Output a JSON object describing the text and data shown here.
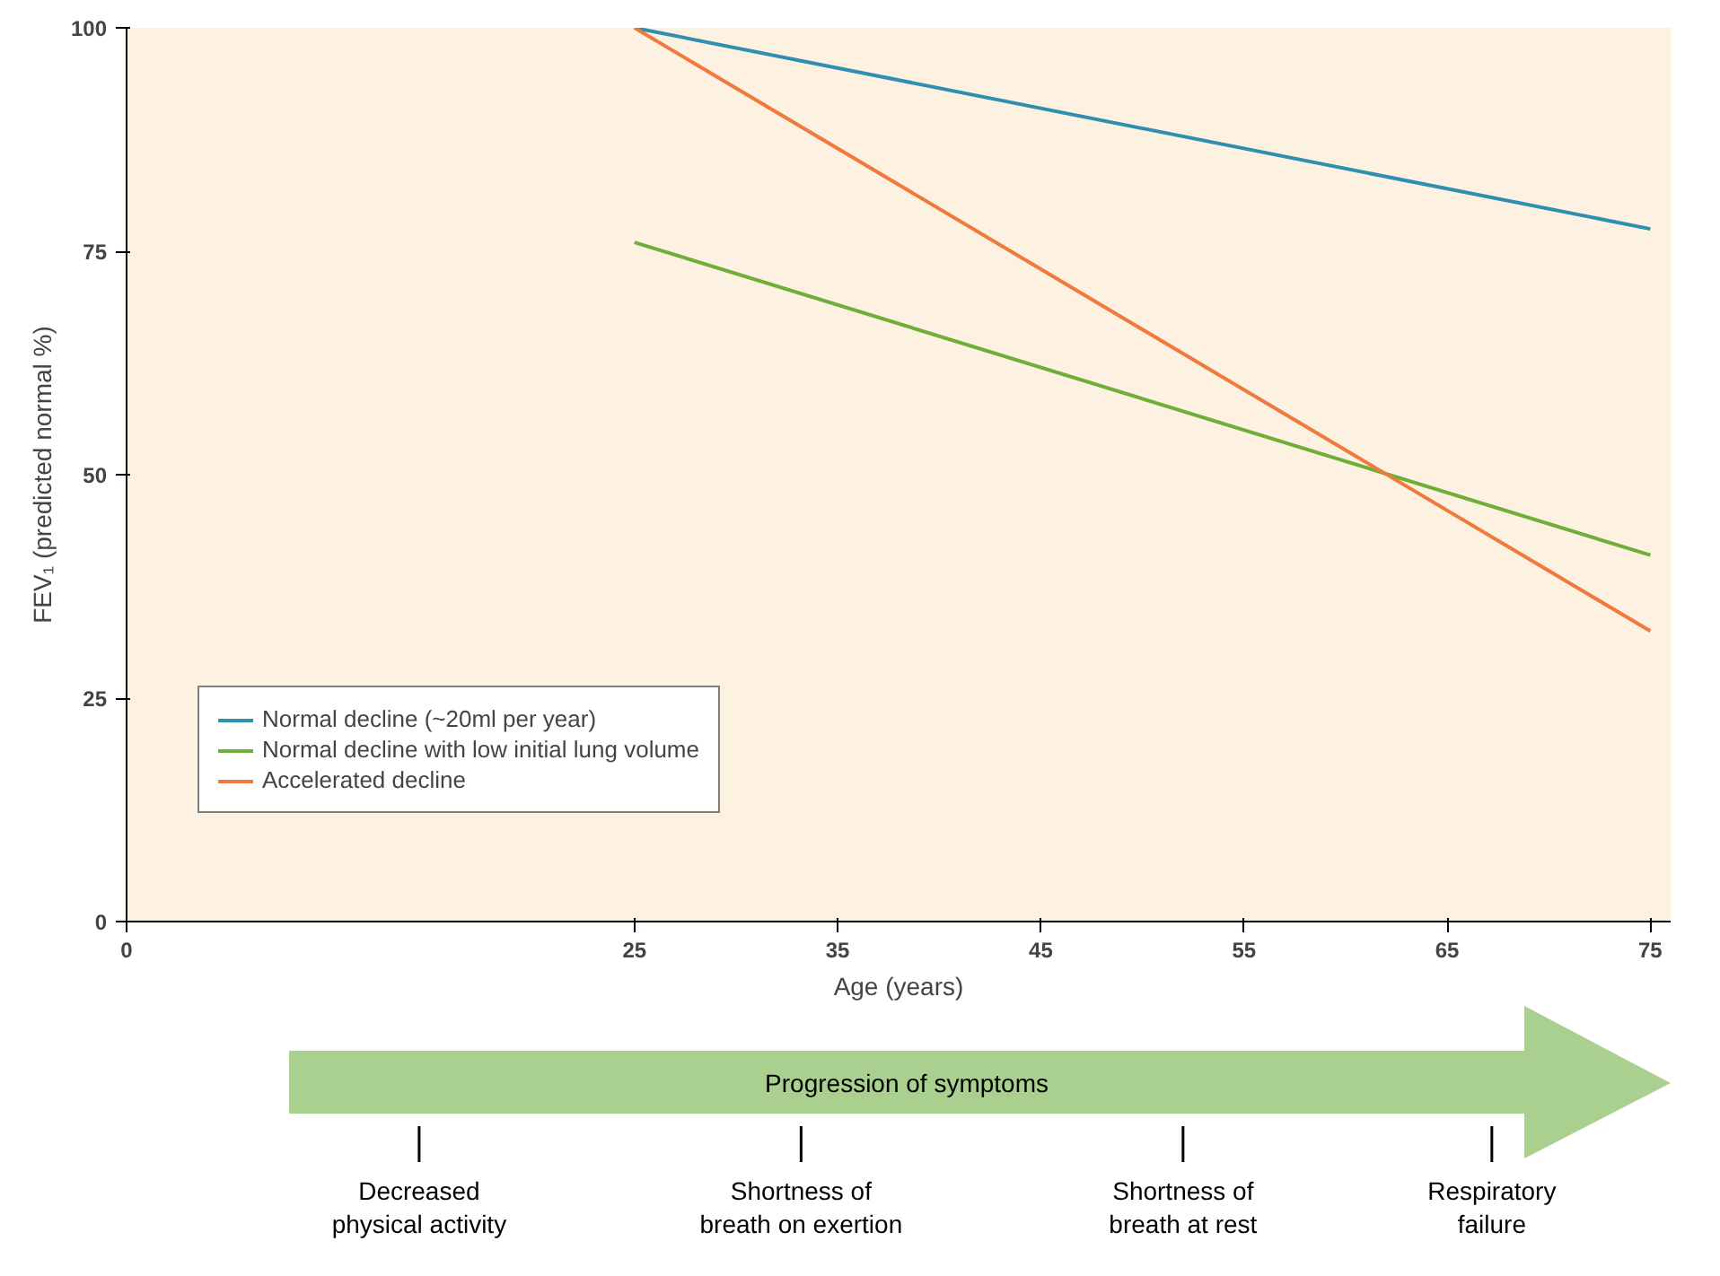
{
  "chart_data": {
    "type": "line",
    "xlabel": "Age (years)",
    "ylabel": "FEV₁ (predicted normal %)",
    "x": [
      25,
      75
    ],
    "series": [
      {
        "name": "Normal decline (~20ml per year)",
        "color": "#2e8fb0",
        "values": [
          100,
          77.5
        ]
      },
      {
        "name": "Normal decline with low initial lung volume",
        "color": "#6fae3a",
        "values": [
          76,
          41
        ]
      },
      {
        "name": "Accelerated decline",
        "color": "#f07a3e",
        "values": [
          100,
          32.5
        ]
      }
    ],
    "xlim": [
      0,
      76
    ],
    "xticks": [
      0,
      25,
      35,
      45,
      55,
      65,
      75
    ],
    "ylim": [
      0,
      100
    ],
    "yticks": [
      0,
      25,
      50,
      75,
      100
    ],
    "grid": false,
    "legend": "bottom left",
    "marker": "none",
    "line_style": "solid",
    "annotations": [
      "Progression of symptoms",
      "Decreased\nphysical activity",
      "Shortness of\nbreath on exertion",
      "Shortness of\nbreath at rest",
      "Respiratory\nfailure"
    ]
  }
}
